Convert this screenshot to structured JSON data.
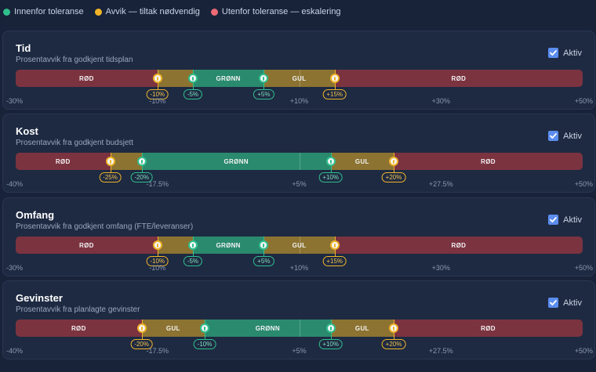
{
  "legend": [
    {
      "label": "Innenfor toleranse",
      "color": "#2fbf8d"
    },
    {
      "label": "Avvik — tiltak nødvendig",
      "color": "#f0b429"
    },
    {
      "label": "Utenfor toleranse — eskalering",
      "color": "#ee6a75"
    }
  ],
  "active_label": "Aktiv",
  "cards": [
    {
      "title": "Tid",
      "subtitle": "Prosentavvik fra godkjent tidsplan",
      "active": true,
      "range": [
        -30,
        50
      ],
      "segments": [
        {
          "from": -30,
          "to": -10,
          "color": "red",
          "label": "RØD"
        },
        {
          "from": -10,
          "to": -5,
          "color": "yellow",
          "label": ""
        },
        {
          "from": -5,
          "to": 5,
          "color": "green",
          "label": "GRØNN"
        },
        {
          "from": 5,
          "to": 15,
          "color": "yellow",
          "label": "GUL"
        },
        {
          "from": 15,
          "to": 50,
          "color": "red",
          "label": "RØD"
        }
      ],
      "handles": [
        {
          "value": -10,
          "type": "y",
          "label": "-10%"
        },
        {
          "value": -5,
          "type": "g",
          "label": "-5%"
        },
        {
          "value": 5,
          "type": "g",
          "label": "+5%"
        },
        {
          "value": 15,
          "type": "y",
          "label": "+15%"
        }
      ],
      "ticks": [
        "-30%",
        "-10%",
        "+10%",
        "+30%",
        "+50%"
      ]
    },
    {
      "title": "Kost",
      "subtitle": "Prosentavvik fra godkjent budsjett",
      "active": true,
      "range": [
        -40,
        50
      ],
      "segments": [
        {
          "from": -40,
          "to": -25,
          "color": "red",
          "label": "RØD"
        },
        {
          "from": -25,
          "to": -20,
          "color": "yellow",
          "label": ""
        },
        {
          "from": -20,
          "to": 10,
          "color": "green",
          "label": "GRØNN"
        },
        {
          "from": 10,
          "to": 20,
          "color": "yellow",
          "label": "GUL"
        },
        {
          "from": 20,
          "to": 50,
          "color": "red",
          "label": "RØD"
        }
      ],
      "handles": [
        {
          "value": -25,
          "type": "y",
          "label": "-25%"
        },
        {
          "value": -20,
          "type": "g",
          "label": "-20%"
        },
        {
          "value": 10,
          "type": "g",
          "label": "+10%"
        },
        {
          "value": 20,
          "type": "y",
          "label": "+20%"
        }
      ],
      "ticks": [
        "-40%",
        "-17.5%",
        "+5%",
        "+27.5%",
        "+50%"
      ]
    },
    {
      "title": "Omfang",
      "subtitle": "Prosentavvik fra godkjent omfang (FTE/leveranser)",
      "active": true,
      "range": [
        -30,
        50
      ],
      "segments": [
        {
          "from": -30,
          "to": -10,
          "color": "red",
          "label": "RØD"
        },
        {
          "from": -10,
          "to": -5,
          "color": "yellow",
          "label": ""
        },
        {
          "from": -5,
          "to": 5,
          "color": "green",
          "label": "GRØNN"
        },
        {
          "from": 5,
          "to": 15,
          "color": "yellow",
          "label": "GUL"
        },
        {
          "from": 15,
          "to": 50,
          "color": "red",
          "label": "RØD"
        }
      ],
      "handles": [
        {
          "value": -10,
          "type": "y",
          "label": "-10%"
        },
        {
          "value": -5,
          "type": "g",
          "label": "-5%"
        },
        {
          "value": 5,
          "type": "g",
          "label": "+5%"
        },
        {
          "value": 15,
          "type": "y",
          "label": "+15%"
        }
      ],
      "ticks": [
        "-30%",
        "-10%",
        "+10%",
        "+30%",
        "+50%"
      ]
    },
    {
      "title": "Gevinster",
      "subtitle": "Prosentavvik fra planlagte gevinster",
      "active": true,
      "range": [
        -40,
        50
      ],
      "segments": [
        {
          "from": -40,
          "to": -20,
          "color": "red",
          "label": "RØD"
        },
        {
          "from": -20,
          "to": -10,
          "color": "yellow",
          "label": "GUL"
        },
        {
          "from": -10,
          "to": 10,
          "color": "green",
          "label": "GRØNN"
        },
        {
          "from": 10,
          "to": 20,
          "color": "yellow",
          "label": "GUL"
        },
        {
          "from": 20,
          "to": 50,
          "color": "red",
          "label": "RØD"
        }
      ],
      "handles": [
        {
          "value": -20,
          "type": "y",
          "label": "-20%"
        },
        {
          "value": -10,
          "type": "g",
          "label": "-10%"
        },
        {
          "value": 10,
          "type": "g",
          "label": "+10%"
        },
        {
          "value": 20,
          "type": "y",
          "label": "+20%"
        }
      ],
      "ticks": [
        "-40%",
        "-17.5%",
        "+5%",
        "+27.5%",
        "+50%"
      ]
    }
  ]
}
